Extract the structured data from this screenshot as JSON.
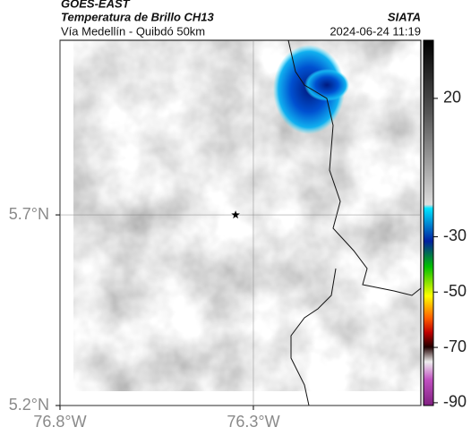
{
  "header": {
    "title": "GOES-EAST",
    "subtitle": "Temperatura de Brillo CH13",
    "source": "SIATA",
    "location": "Vía Medellín - Quibdó 50km",
    "datetime": "2024-06-24 11:19"
  },
  "map": {
    "xlim": [
      -76.8,
      -75.867
    ],
    "ylim": [
      5.2,
      6.158
    ],
    "xticks": [
      {
        "value": -76.8,
        "label": "76.8°W"
      },
      {
        "value": -76.3,
        "label": "76.3°W"
      }
    ],
    "yticks": [
      {
        "value": 5.2,
        "label": "5.2°N"
      },
      {
        "value": 5.7,
        "label": "5.7°N"
      }
    ],
    "marker": {
      "lon": -76.346,
      "lat": 5.7
    }
  },
  "colorbar": {
    "lim": [
      -91,
      41
    ],
    "ticks": [
      20,
      -30,
      -50,
      -70,
      -90
    ]
  }
}
